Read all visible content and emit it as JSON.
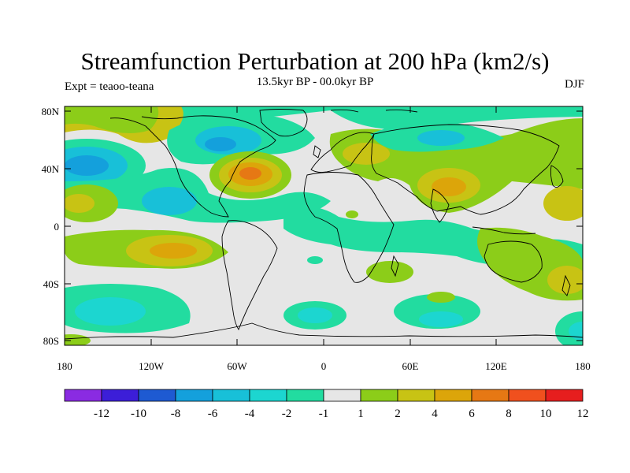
{
  "map": {
    "title": "Streamfunction Perturbation at 200 hPa (km2/s)",
    "subtitle": "13.5kyr BP - 00.0kyr BP",
    "left_label": "Expt = teaoo-teana",
    "right_label": "DJF",
    "projection": "cylindrical-equidistant",
    "lat_ticks": [
      "80N",
      "40N",
      "0",
      "40S",
      "80S"
    ],
    "lon_ticks": [
      "180",
      "120W",
      "60W",
      "0",
      "60E",
      "120E",
      "180"
    ],
    "background_color": "#e6e6e6",
    "coastline_color": "#000000"
  },
  "colorbar": {
    "colors": [
      "#8a2be2",
      "#3c1ed8",
      "#1e5ad2",
      "#14a0dc",
      "#18c0d8",
      "#1cd6d0",
      "#22dca0",
      "#e6e6e6",
      "#8ccd19",
      "#c8c314",
      "#dca50a",
      "#e67814",
      "#f0501e",
      "#e61e1e"
    ],
    "labels": [
      "-12",
      "-10",
      "-8",
      "-6",
      "-4",
      "-2",
      "-1",
      "1",
      "2",
      "4",
      "6",
      "8",
      "10",
      "12"
    ]
  },
  "features": [
    {
      "region": "N Pacific",
      "sign": "negative",
      "peak": "-6"
    },
    {
      "region": "Greenland / Labrador",
      "sign": "negative",
      "peak": "-6"
    },
    {
      "region": "NW Atlantic",
      "sign": "positive",
      "peak": "8"
    },
    {
      "region": "Siberia / Central Asia",
      "sign": "positive",
      "peak": "4"
    },
    {
      "region": "Arctic / N Europe",
      "sign": "negative",
      "peak": "-4"
    },
    {
      "region": "Tropical E Pacific",
      "sign": "positive",
      "peak": "4"
    },
    {
      "region": "S Pacific",
      "sign": "positive",
      "peak": "6"
    },
    {
      "region": "Southern Ocean Pacific sector",
      "sign": "negative",
      "peak": "-4"
    },
    {
      "region": "South Atlantic",
      "sign": "negative",
      "peak": "-4"
    },
    {
      "region": "Indian Ocean",
      "sign": "negative",
      "peak": "-4"
    },
    {
      "region": "SW Pacific",
      "sign": "positive",
      "peak": "4"
    }
  ]
}
